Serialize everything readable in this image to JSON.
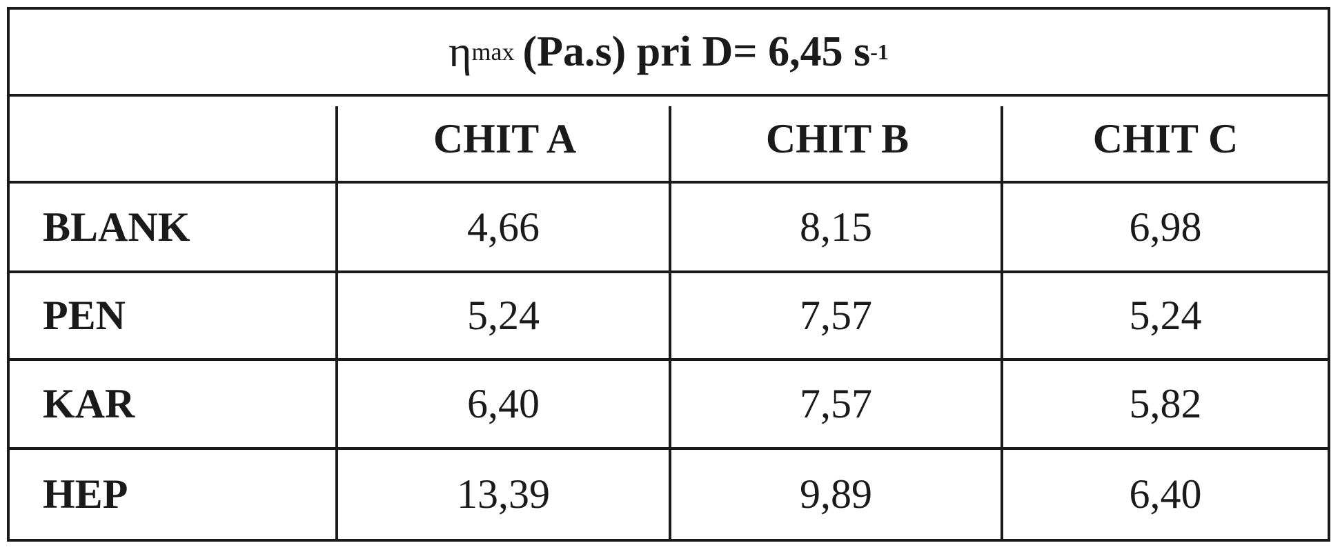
{
  "table": {
    "title": {
      "eta": "η",
      "subscript": "max",
      "main": " (Pa.s) pri D= 6,45 s",
      "superscript": "-1"
    },
    "columns": [
      "",
      "CHIT A",
      "CHIT B",
      "CHIT C"
    ],
    "rows": [
      {
        "label": "BLANK",
        "values": [
          "4,66",
          "8,15",
          "6,98"
        ]
      },
      {
        "label": "PEN",
        "values": [
          "5,24",
          "7,57",
          "5,24"
        ]
      },
      {
        "label": "KAR",
        "values": [
          "6,40",
          "7,57",
          "5,82"
        ]
      },
      {
        "label": "HEP",
        "values": [
          "13,39",
          "9,89",
          "6,40"
        ]
      }
    ]
  }
}
